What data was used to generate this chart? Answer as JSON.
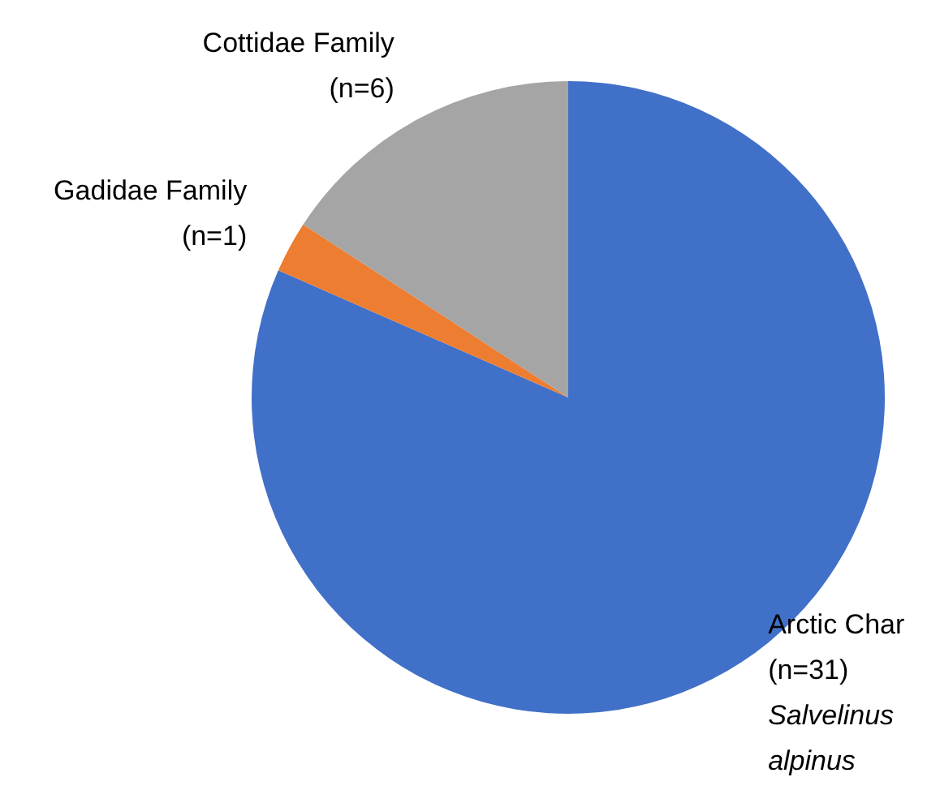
{
  "chart_data": {
    "type": "pie",
    "categories": [
      "Arctic Char",
      "Gadidae Family",
      "Cottidae Family"
    ],
    "values": [
      31,
      1,
      6
    ],
    "value_labels": [
      "(n=31)",
      "(n=1)",
      "(n=6)"
    ],
    "colors": [
      "#4170c8",
      "#ed7d31",
      "#a5a5a5"
    ],
    "annotations": [
      "Salvelinus alpinus"
    ]
  }
}
